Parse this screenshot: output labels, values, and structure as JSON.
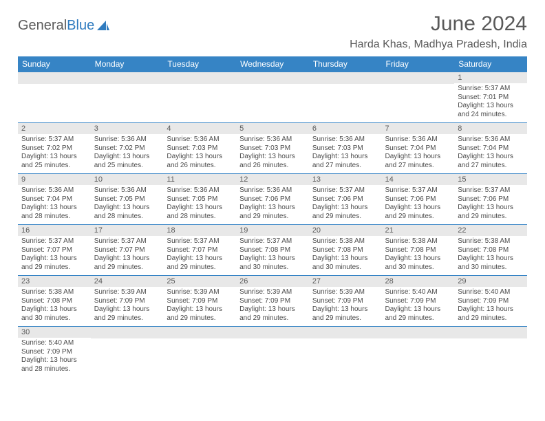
{
  "brand": {
    "name_a": "General",
    "name_b": "Blue"
  },
  "title": "June 2024",
  "location": "Harda Khas, Madhya Pradesh, India",
  "colors": {
    "header_bg": "#3684c5",
    "header_text": "#ffffff",
    "daynum_bg": "#e8e8e8",
    "text_muted": "#595959",
    "cell_border": "#3684c5"
  },
  "weekdays": [
    "Sunday",
    "Monday",
    "Tuesday",
    "Wednesday",
    "Thursday",
    "Friday",
    "Saturday"
  ],
  "first_weekday_index": 6,
  "days": [
    {
      "n": 1,
      "sr": "5:37 AM",
      "ss": "7:01 PM",
      "dl": "13 hours and 24 minutes."
    },
    {
      "n": 2,
      "sr": "5:37 AM",
      "ss": "7:02 PM",
      "dl": "13 hours and 25 minutes."
    },
    {
      "n": 3,
      "sr": "5:36 AM",
      "ss": "7:02 PM",
      "dl": "13 hours and 25 minutes."
    },
    {
      "n": 4,
      "sr": "5:36 AM",
      "ss": "7:03 PM",
      "dl": "13 hours and 26 minutes."
    },
    {
      "n": 5,
      "sr": "5:36 AM",
      "ss": "7:03 PM",
      "dl": "13 hours and 26 minutes."
    },
    {
      "n": 6,
      "sr": "5:36 AM",
      "ss": "7:03 PM",
      "dl": "13 hours and 27 minutes."
    },
    {
      "n": 7,
      "sr": "5:36 AM",
      "ss": "7:04 PM",
      "dl": "13 hours and 27 minutes."
    },
    {
      "n": 8,
      "sr": "5:36 AM",
      "ss": "7:04 PM",
      "dl": "13 hours and 27 minutes."
    },
    {
      "n": 9,
      "sr": "5:36 AM",
      "ss": "7:04 PM",
      "dl": "13 hours and 28 minutes."
    },
    {
      "n": 10,
      "sr": "5:36 AM",
      "ss": "7:05 PM",
      "dl": "13 hours and 28 minutes."
    },
    {
      "n": 11,
      "sr": "5:36 AM",
      "ss": "7:05 PM",
      "dl": "13 hours and 28 minutes."
    },
    {
      "n": 12,
      "sr": "5:36 AM",
      "ss": "7:06 PM",
      "dl": "13 hours and 29 minutes."
    },
    {
      "n": 13,
      "sr": "5:37 AM",
      "ss": "7:06 PM",
      "dl": "13 hours and 29 minutes."
    },
    {
      "n": 14,
      "sr": "5:37 AM",
      "ss": "7:06 PM",
      "dl": "13 hours and 29 minutes."
    },
    {
      "n": 15,
      "sr": "5:37 AM",
      "ss": "7:06 PM",
      "dl": "13 hours and 29 minutes."
    },
    {
      "n": 16,
      "sr": "5:37 AM",
      "ss": "7:07 PM",
      "dl": "13 hours and 29 minutes."
    },
    {
      "n": 17,
      "sr": "5:37 AM",
      "ss": "7:07 PM",
      "dl": "13 hours and 29 minutes."
    },
    {
      "n": 18,
      "sr": "5:37 AM",
      "ss": "7:07 PM",
      "dl": "13 hours and 29 minutes."
    },
    {
      "n": 19,
      "sr": "5:37 AM",
      "ss": "7:08 PM",
      "dl": "13 hours and 30 minutes."
    },
    {
      "n": 20,
      "sr": "5:38 AM",
      "ss": "7:08 PM",
      "dl": "13 hours and 30 minutes."
    },
    {
      "n": 21,
      "sr": "5:38 AM",
      "ss": "7:08 PM",
      "dl": "13 hours and 30 minutes."
    },
    {
      "n": 22,
      "sr": "5:38 AM",
      "ss": "7:08 PM",
      "dl": "13 hours and 30 minutes."
    },
    {
      "n": 23,
      "sr": "5:38 AM",
      "ss": "7:08 PM",
      "dl": "13 hours and 30 minutes."
    },
    {
      "n": 24,
      "sr": "5:39 AM",
      "ss": "7:09 PM",
      "dl": "13 hours and 29 minutes."
    },
    {
      "n": 25,
      "sr": "5:39 AM",
      "ss": "7:09 PM",
      "dl": "13 hours and 29 minutes."
    },
    {
      "n": 26,
      "sr": "5:39 AM",
      "ss": "7:09 PM",
      "dl": "13 hours and 29 minutes."
    },
    {
      "n": 27,
      "sr": "5:39 AM",
      "ss": "7:09 PM",
      "dl": "13 hours and 29 minutes."
    },
    {
      "n": 28,
      "sr": "5:40 AM",
      "ss": "7:09 PM",
      "dl": "13 hours and 29 minutes."
    },
    {
      "n": 29,
      "sr": "5:40 AM",
      "ss": "7:09 PM",
      "dl": "13 hours and 29 minutes."
    },
    {
      "n": 30,
      "sr": "5:40 AM",
      "ss": "7:09 PM",
      "dl": "13 hours and 28 minutes."
    }
  ],
  "labels": {
    "sunrise": "Sunrise:",
    "sunset": "Sunset:",
    "daylight": "Daylight:"
  }
}
